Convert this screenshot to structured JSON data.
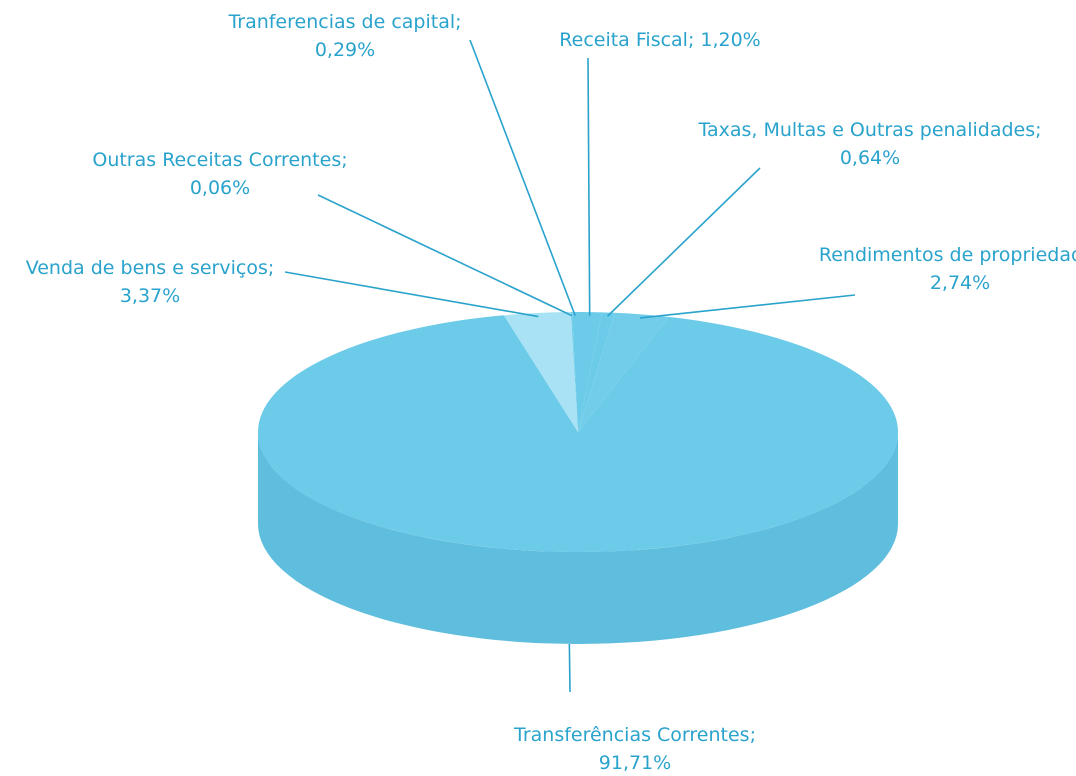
{
  "chart_data": {
    "type": "pie",
    "categories": [
      "Receita Fiscal;",
      "Taxas, Multas e Outras penalidades;",
      "Rendimentos de propriedade;",
      "Transferências Correntes;",
      "Venda de bens e serviços;",
      "Outras Receitas Correntes;",
      "Tranferencias de capital;"
    ],
    "values": [
      1.2,
      0.64,
      2.74,
      91.71,
      3.37,
      0.06,
      0.29
    ],
    "value_labels": [
      "1,20%",
      "0,64%",
      "2,74%",
      "91,71%",
      "3,37%",
      "0,06%",
      "0,29%"
    ],
    "colors": [
      "#6ccbe9",
      "#6ccbe9",
      "#72cdea",
      "#6ccbe9",
      "#a9e2f4",
      "#6ccbe9",
      "#6ccbe9"
    ]
  }
}
